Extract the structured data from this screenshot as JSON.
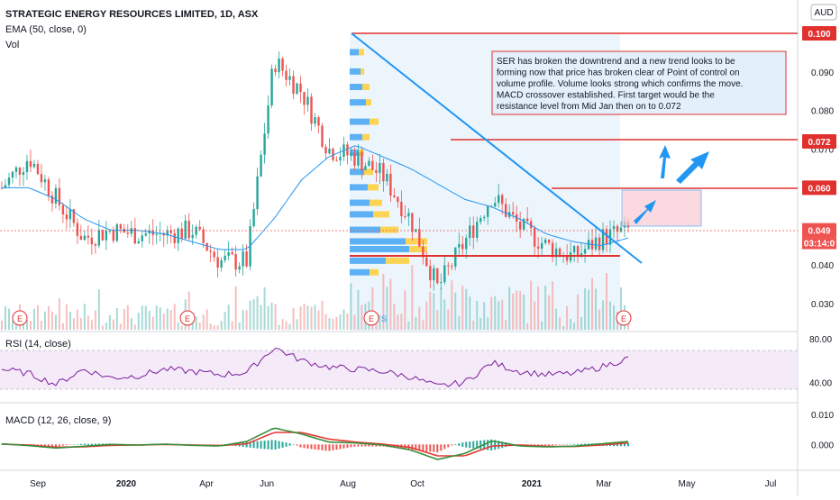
{
  "header": {
    "symbol_title": "STRATEGIC ENERGY RESOURCES LIMITED, 1D, ASX",
    "ema_label": "EMA (50, close, 0)",
    "vol_label": "Vol",
    "currency": "AUD"
  },
  "annotation": {
    "lines": [
      "SER has broken the downtrend and a new trend looks to be",
      "forming now that price has broken clear of Point of control on",
      "volume profile. Volume looks strong which confirms the move.",
      "MACD crossover established. First target would be the",
      "resistance level from Mid Jan then on to 0.072"
    ]
  },
  "earnings_marker": "E",
  "split_marker": "S",
  "price_tags": [
    {
      "value": "0.100",
      "color": "#e0312f"
    },
    {
      "value": "0.072",
      "color": "#e0312f"
    },
    {
      "value": "0.060",
      "color": "#e0312f"
    },
    {
      "value": "0.049",
      "color": "#ef5350"
    }
  ],
  "countdown": "03:14:0",
  "colors": {
    "up": "#26a69a",
    "down": "#ef5350",
    "ema": "#2196f3",
    "trendline": "#2196f3",
    "level": "#e0312f",
    "rsi": "#7b1fa2",
    "macd": "#388e3c",
    "signal": "#e53935"
  },
  "chart_data": [
    {
      "type": "candlestick",
      "title": "STRATEGIC ENERGY RESOURCES LIMITED, 1D, ASX",
      "y_ticks": [
        "0.100",
        "0.090",
        "0.080",
        "0.070",
        "0.060",
        "0.050",
        "0.040",
        "0.030"
      ],
      "ylim": [
        0.027,
        0.102
      ],
      "x_ticks": [
        "Sep",
        "2020",
        "Apr",
        "Jun",
        "Aug",
        "Oct",
        "2021",
        "Mar",
        "May",
        "Jul"
      ],
      "series": [
        {
          "name": "EMA (50, close, 0)",
          "values_sampled": [
            0.06,
            0.06,
            0.057,
            0.052,
            0.049,
            0.049,
            0.048,
            0.046,
            0.044,
            0.044,
            0.052,
            0.062,
            0.068,
            0.071,
            0.068,
            0.065,
            0.061,
            0.057,
            0.055,
            0.052,
            0.048,
            0.046,
            0.045,
            0.047
          ]
        },
        {
          "name": "close",
          "values_sampled": [
            0.06,
            0.068,
            0.057,
            0.047,
            0.049,
            0.048,
            0.048,
            0.049,
            0.041,
            0.041,
            0.093,
            0.085,
            0.07,
            0.068,
            0.063,
            0.052,
            0.034,
            0.046,
            0.058,
            0.05,
            0.045,
            0.042,
            0.047,
            0.049
          ]
        }
      ],
      "horizontal_levels": [
        0.1,
        0.072,
        0.06,
        0.044
      ],
      "trendline": {
        "from": [
          0.1
        ],
        "to": [
          0.042
        ]
      }
    },
    {
      "type": "line",
      "name": "RSI (14, close)",
      "y_ticks": [
        "80.00",
        "40.00"
      ],
      "ylim": [
        22,
        85
      ],
      "band": [
        30,
        70
      ],
      "values_sampled": [
        52,
        48,
        38,
        52,
        44,
        46,
        52,
        50,
        47,
        49,
        72,
        60,
        54,
        52,
        50,
        45,
        36,
        40,
        58,
        50,
        47,
        48,
        54,
        62
      ]
    },
    {
      "type": "line",
      "name": "MACD (12, 26, close, 9)",
      "y_ticks": [
        "0.010",
        "0.000"
      ],
      "ylim": [
        -0.008,
        0.013
      ],
      "macd_sampled": [
        0.0002,
        -0.0004,
        -0.0012,
        -0.0006,
        0.0,
        -0.0002,
        0.0001,
        -0.0003,
        -0.0005,
        0.001,
        0.0055,
        0.0035,
        0.0008,
        0.0005,
        -0.0002,
        -0.0018,
        -0.005,
        -0.003,
        0.0012,
        -0.0005,
        -0.0008,
        -0.0006,
        0.0002,
        0.001
      ],
      "signal_sampled": [
        0.0001,
        -0.0002,
        -0.0009,
        -0.0008,
        -0.0003,
        -0.0002,
        0.0,
        -0.0002,
        -0.0004,
        0.0002,
        0.004,
        0.004,
        0.0018,
        0.0008,
        0.0001,
        -0.001,
        -0.0038,
        -0.0038,
        -0.0005,
        -0.0002,
        -0.0006,
        -0.0007,
        -0.0002,
        0.0005
      ]
    }
  ]
}
